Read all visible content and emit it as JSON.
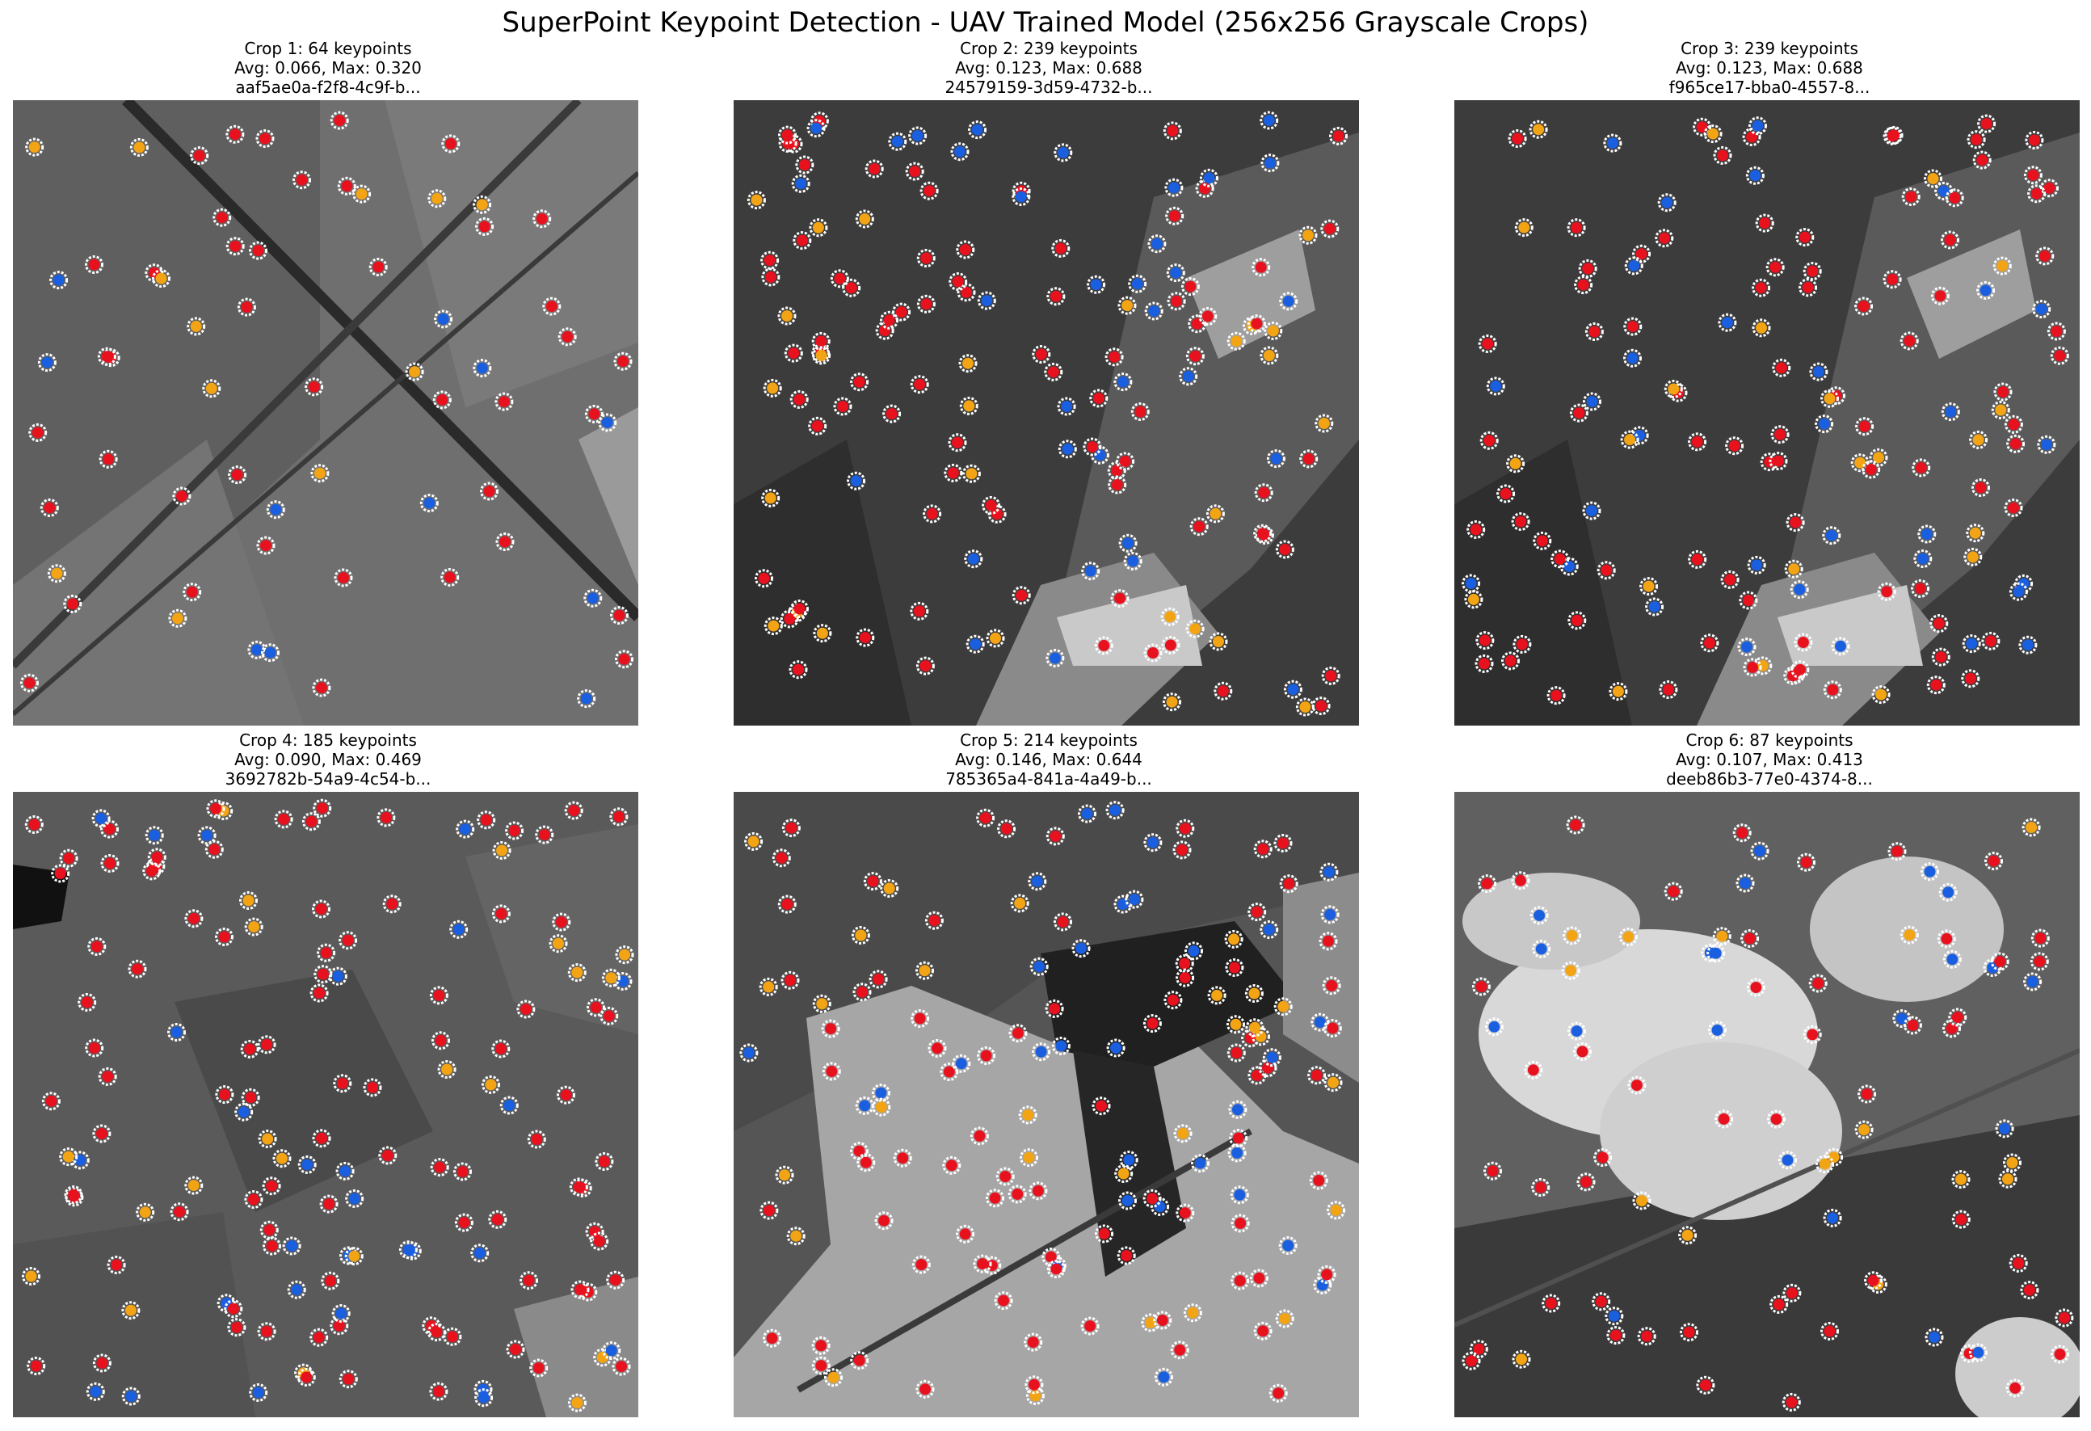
{
  "title": "SuperPoint Keypoint Detection - UAV Trained Model (256x256 Grayscale Crops)",
  "marker_colors": {
    "red": "#e8121e",
    "blue": "#1a5fe0",
    "orange": "#f2a414",
    "ring": "#ffffff"
  },
  "crops": [
    {
      "line1": "Crop 1: 64 keypoints",
      "line2": "Avg: 0.066, Max: 0.320",
      "line3": "aaf5ae0a-f2f8-4c9f-b...",
      "scene": "farm fields crossed by a diagonal road"
    },
    {
      "line1": "Crop 2: 239 keypoints",
      "line2": "Avg: 0.123, Max: 0.688",
      "line3": "24579159-3d59-4732-b...",
      "scene": "vegetation with buildings along a diagonal"
    },
    {
      "line1": "Crop 3: 239 keypoints",
      "line2": "Avg: 0.123, Max: 0.688",
      "line3": "f965ce17-bba0-4557-8...",
      "scene": "vegetation with buildings along a diagonal"
    },
    {
      "line1": "Crop 4: 185 keypoints",
      "line2": "Avg: 0.090, Max: 0.469",
      "line3": "3692782b-54a9-4c54-b...",
      "scene": "dark textured terrain"
    },
    {
      "line1": "Crop 5: 214 keypoints",
      "line2": "Avg: 0.146, Max: 0.644",
      "line3": "785365a4-841a-4a49-b...",
      "scene": "light field with dark vegetation band"
    },
    {
      "line1": "Crop 6: 87 keypoints",
      "line2": "Avg: 0.107, Max: 0.413",
      "line3": "deeb86b3-77e0-4374-8...",
      "scene": "fields partially covered by clouds"
    }
  ]
}
